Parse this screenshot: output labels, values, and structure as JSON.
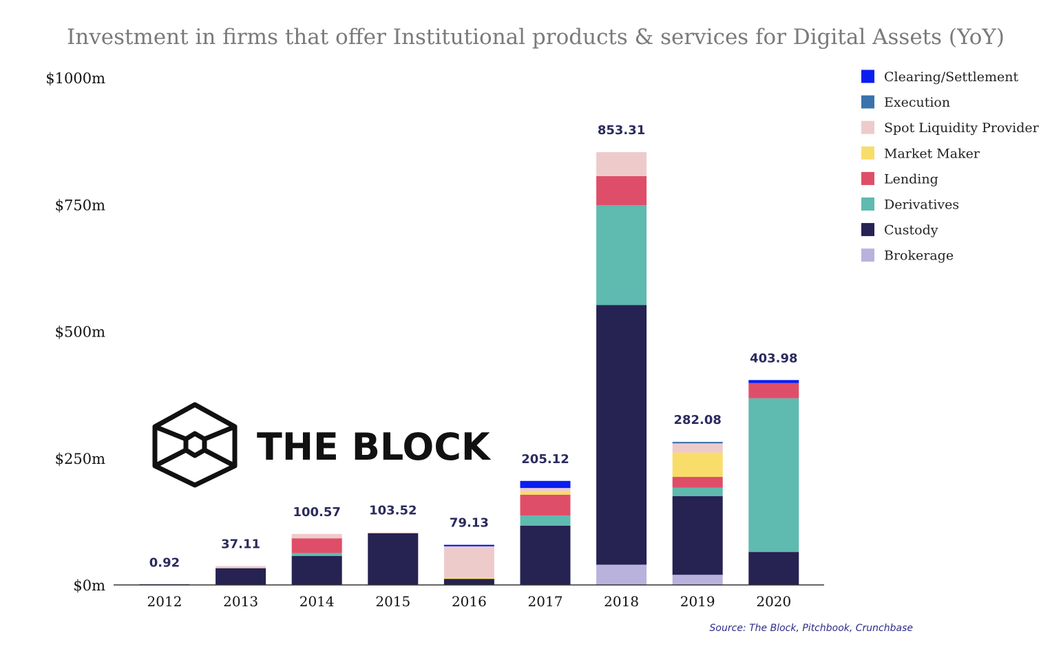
{
  "chart_data": {
    "type": "bar",
    "stacked": true,
    "title": "Investment in firms that offer Institutional products & services for Digital Assets (YoY)",
    "categories": [
      "2012",
      "2013",
      "2014",
      "2015",
      "2016",
      "2017",
      "2018",
      "2019",
      "2020"
    ],
    "totals": [
      "0.92",
      "37.11",
      "100.57",
      "103.52",
      "79.13",
      "205.12",
      "853.31",
      "282.08",
      "403.98"
    ],
    "yticks": [
      {
        "value": 0,
        "label": "$0m"
      },
      {
        "value": 250,
        "label": "$250m"
      },
      {
        "value": 500,
        "label": "$500m"
      },
      {
        "value": 750,
        "label": "$750m"
      },
      {
        "value": 1000,
        "label": "$1000m"
      }
    ],
    "ylim": [
      0,
      1000
    ],
    "legend_position": "right",
    "series": [
      {
        "name": "Brokerage",
        "color": "#b8b2dd",
        "values": [
          0,
          0,
          0,
          0,
          0,
          0,
          40,
          20,
          0
        ]
      },
      {
        "name": "Custody",
        "color": "#262252",
        "values": [
          0.92,
          33,
          57,
          102,
          12,
          117,
          512,
          155,
          65
        ]
      },
      {
        "name": "Derivatives",
        "color": "#5fbab0",
        "values": [
          0,
          0,
          6,
          0,
          0,
          20,
          197,
          17,
          303
        ]
      },
      {
        "name": "Lending",
        "color": "#df4e68",
        "values": [
          0,
          0,
          29,
          0,
          0,
          41,
          57,
          21,
          30
        ]
      },
      {
        "name": "Market Maker",
        "color": "#f8dd6a",
        "values": [
          0,
          0,
          0,
          0,
          3,
          6,
          0,
          48,
          0
        ]
      },
      {
        "name": "Spot Liquidity Provider",
        "color": "#eecbcb",
        "values": [
          0,
          4.11,
          8.57,
          1.52,
          61.13,
          7.12,
          47.31,
          18.08,
          0
        ]
      },
      {
        "name": "Execution",
        "color": "#3a72ad",
        "values": [
          0,
          0,
          0,
          0,
          0,
          0,
          0,
          3,
          0
        ]
      },
      {
        "name": "Clearing/Settlement",
        "color": "#0a1ef2",
        "values": [
          0,
          0,
          0,
          0,
          3,
          14,
          0,
          0,
          5.98
        ]
      }
    ],
    "legend_order": [
      "Clearing/Settlement",
      "Execution",
      "Spot Liquidity Provider",
      "Market Maker",
      "Lending",
      "Derivatives",
      "Custody",
      "Brokerage"
    ],
    "source": "Source: The Block, Pitchbook, Crunchbase"
  },
  "logo": {
    "text": "THE BLOCK",
    "icon": "cube-icon"
  }
}
